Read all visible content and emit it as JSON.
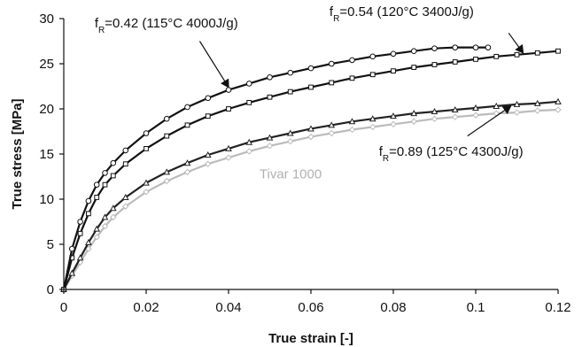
{
  "chart_data": {
    "type": "scatter",
    "title": "",
    "xlabel": "True strain [-]",
    "ylabel": "True stress [MPa]",
    "xlim": [
      0,
      0.12
    ],
    "ylim": [
      0,
      30
    ],
    "xticks": [
      "0",
      "0.02",
      "0.04",
      "0.06",
      "0.08",
      "0.1",
      "0.12"
    ],
    "yticks": [
      "0",
      "5",
      "10",
      "15",
      "20",
      "25",
      "30"
    ],
    "grid": false,
    "legend": "none",
    "series": [
      {
        "color": "#111111",
        "marker": "circle",
        "x": [
          0,
          0.002,
          0.004,
          0.006,
          0.008,
          0.01,
          0.012,
          0.015,
          0.02,
          0.025,
          0.03,
          0.035,
          0.04,
          0.045,
          0.05,
          0.055,
          0.06,
          0.065,
          0.07,
          0.075,
          0.08,
          0.085,
          0.09,
          0.095,
          0.1,
          0.103
        ],
        "y": [
          0,
          4.5,
          7.5,
          9.8,
          11.6,
          12.9,
          14.0,
          15.4,
          17.3,
          18.9,
          20.2,
          21.2,
          22.1,
          22.8,
          23.5,
          24.0,
          24.5,
          25.0,
          25.4,
          25.8,
          26.1,
          26.4,
          26.7,
          26.8,
          26.8,
          26.8
        ]
      },
      {
        "color": "#111111",
        "marker": "square",
        "x": [
          0,
          0.002,
          0.004,
          0.006,
          0.008,
          0.01,
          0.012,
          0.015,
          0.02,
          0.025,
          0.03,
          0.035,
          0.04,
          0.045,
          0.05,
          0.055,
          0.06,
          0.065,
          0.07,
          0.075,
          0.08,
          0.085,
          0.09,
          0.095,
          0.1,
          0.105,
          0.11,
          0.115,
          0.12
        ],
        "y": [
          0,
          3.5,
          6.2,
          8.4,
          10.2,
          11.6,
          12.6,
          13.9,
          15.6,
          17.0,
          18.2,
          19.2,
          20.0,
          20.7,
          21.3,
          21.9,
          22.4,
          22.9,
          23.4,
          23.8,
          24.2,
          24.6,
          24.9,
          25.2,
          25.5,
          25.8,
          26.0,
          26.2,
          26.4
        ]
      },
      {
        "color": "#222222",
        "marker": "triangle",
        "x": [
          0,
          0.002,
          0.004,
          0.006,
          0.008,
          0.01,
          0.012,
          0.015,
          0.02,
          0.025,
          0.03,
          0.035,
          0.04,
          0.045,
          0.05,
          0.055,
          0.06,
          0.065,
          0.07,
          0.075,
          0.08,
          0.085,
          0.09,
          0.095,
          0.1,
          0.105,
          0.11,
          0.115,
          0.12
        ],
        "y": [
          0,
          1.8,
          3.5,
          5.2,
          6.7,
          8.0,
          9.0,
          10.2,
          11.8,
          13.0,
          14.0,
          14.9,
          15.6,
          16.3,
          16.8,
          17.3,
          17.8,
          18.2,
          18.6,
          18.9,
          19.2,
          19.5,
          19.7,
          19.9,
          20.1,
          20.3,
          20.5,
          20.6,
          20.8
        ]
      },
      {
        "color": "#bbbbbb",
        "marker": "diamond",
        "x": [
          0,
          0.002,
          0.004,
          0.006,
          0.008,
          0.01,
          0.012,
          0.015,
          0.02,
          0.025,
          0.03,
          0.035,
          0.04,
          0.045,
          0.05,
          0.055,
          0.06,
          0.065,
          0.07,
          0.075,
          0.08,
          0.085,
          0.09,
          0.095,
          0.1,
          0.105,
          0.11,
          0.115,
          0.12
        ],
        "y": [
          0,
          1.5,
          3.0,
          4.5,
          5.8,
          7.0,
          8.0,
          9.2,
          10.8,
          12.0,
          13.0,
          13.9,
          14.6,
          15.3,
          15.9,
          16.4,
          16.9,
          17.3,
          17.7,
          18.0,
          18.3,
          18.6,
          18.9,
          19.1,
          19.3,
          19.5,
          19.6,
          19.8,
          19.9
        ]
      }
    ],
    "annotations": [
      {
        "parts": [
          {
            "t": "f"
          },
          {
            "t": "R",
            "sub": true
          },
          {
            "t": "=0.42 (115°C 4000J/g)"
          }
        ],
        "color": "#111111",
        "tx": 0.0075,
        "ty": 29.0,
        "arrow": [
          0.033,
          27.5,
          0.04,
          22.4
        ]
      },
      {
        "parts": [
          {
            "t": "f"
          },
          {
            "t": "R",
            "sub": true
          },
          {
            "t": "=0.54 (120°C 3400J/g)"
          }
        ],
        "color": "#111111",
        "tx": 0.0645,
        "ty": 30.3,
        "arrow": [
          0.108,
          28.4,
          0.1115,
          26.2
        ]
      },
      {
        "parts": [
          {
            "t": "f"
          },
          {
            "t": "R",
            "sub": true
          },
          {
            "t": "=0.89 (125°C 4300J/g)"
          }
        ],
        "color": "#111111",
        "tx": 0.0765,
        "ty": 14.8,
        "arrow": [
          0.098,
          17.0,
          0.1085,
          20.3
        ]
      },
      {
        "parts": [
          {
            "t": "Tivar 1000"
          }
        ],
        "color": "#b0b0b0",
        "tx": 0.0475,
        "ty": 12.3,
        "arrow": null
      }
    ]
  }
}
